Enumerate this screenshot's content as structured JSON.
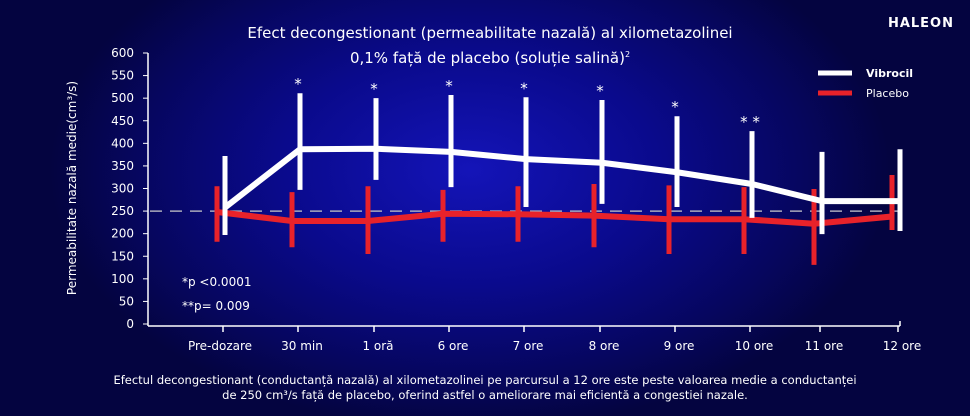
{
  "logo": "HALEON",
  "chart_data": {
    "type": "line",
    "title_line1": "Efect decongestionant (permeabilitate nazală) al xilometazolinei",
    "title_line2": "0,1% față de placebo (soluție salină)",
    "title_sup": "2",
    "ylabel": "Permeabilitate nazală medie(cm³/s)",
    "ylim": [
      0,
      600
    ],
    "yticks": [
      0,
      50,
      100,
      150,
      200,
      250,
      300,
      350,
      400,
      450,
      500,
      550,
      600
    ],
    "categories": [
      "Pre-dozare",
      "30 min",
      "1 oră",
      "6  ore",
      "7  ore",
      "8  ore",
      "9  ore",
      "10  ore",
      "11  ore",
      "12  ore"
    ],
    "reference_line": 250,
    "legend_position": "top-right",
    "series": [
      {
        "name": "Vibrocil",
        "color": "#ffffff",
        "values": [
          258,
          387,
          388,
          381,
          365,
          357,
          336,
          310,
          272,
          272
        ],
        "err_high": [
          372,
          511,
          500,
          507,
          502,
          496,
          460,
          427,
          381,
          387
        ],
        "err_low": [
          197,
          297,
          319,
          303,
          259,
          266,
          259,
          235,
          199,
          206
        ],
        "significance": [
          "",
          "*",
          "*",
          "*",
          "*",
          "*",
          "*",
          "**",
          "",
          ""
        ]
      },
      {
        "name": "Placebo",
        "color": "#e8222a",
        "values": [
          248,
          228,
          228,
          244,
          243,
          240,
          232,
          232,
          222,
          238
        ],
        "err_high": [
          305,
          292,
          305,
          297,
          305,
          310,
          307,
          303,
          299,
          330
        ],
        "err_low": [
          182,
          170,
          155,
          182,
          182,
          170,
          155,
          155,
          131,
          208
        ]
      }
    ],
    "annotations": [
      "*p  <0.0001",
      "**p= 0.009"
    ]
  },
  "footer_line1": "Efectul decongestionant (conductanță nazală) al xilometazolinei pe parcursul a 12 ore este peste valoarea medie a conductanței",
  "footer_line2": "de 250 cm³/s față de placebo, oferind astfel o ameliorare mai eficientă a congestiei nazale."
}
